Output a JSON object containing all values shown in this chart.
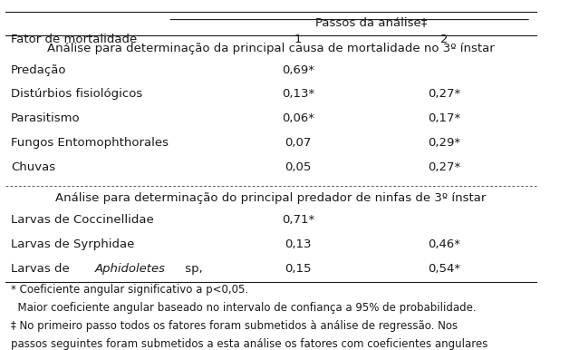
{
  "header_main": "Passos da análise‡",
  "header_col1": "Fator de mortalidade",
  "header_col2": "1",
  "header_col3": "2",
  "section1_title": "Análise para determinação da principal causa de mortalidade no 3º ínstar",
  "section1_rows": [
    [
      "Predação",
      "0,69*",
      ""
    ],
    [
      "Distúrbios fisiológicos",
      "0,13*",
      "0,27*"
    ],
    [
      "Parasitismo",
      "0,06*",
      "0,17*"
    ],
    [
      "Fungos Entomophthorales",
      "0,07",
      "0,29*"
    ],
    [
      "Chuvas",
      "0,05",
      "0,27*"
    ]
  ],
  "section2_title": "Análise para determinação do principal predador de ninfas de 3º ínstar",
  "section2_rows": [
    [
      "Larvas de Coccinellidae",
      "0,71*",
      ""
    ],
    [
      "Larvas de Syrphidae",
      "0,13",
      "0,46*"
    ],
    [
      "Larvas de \\textit{Aphidoletes} sp,",
      "0,15",
      "0,54*"
    ]
  ],
  "footnotes": [
    "* Coeficiente angular significativo a p<0,05.",
    "  Maior coeficiente angular baseado no intervalo de confiança a 95% de probabilidade.",
    "‡ No primeiro passo todos os fatores foram submetidos à análise de regressão. Nos",
    "passos seguintes foram submetidos a esta análise os fatores com coeficientes angulares"
  ],
  "bg_color": "#ffffff",
  "text_color": "#1a1a1a",
  "font_size": 9.5,
  "footnote_font_size": 8.5
}
